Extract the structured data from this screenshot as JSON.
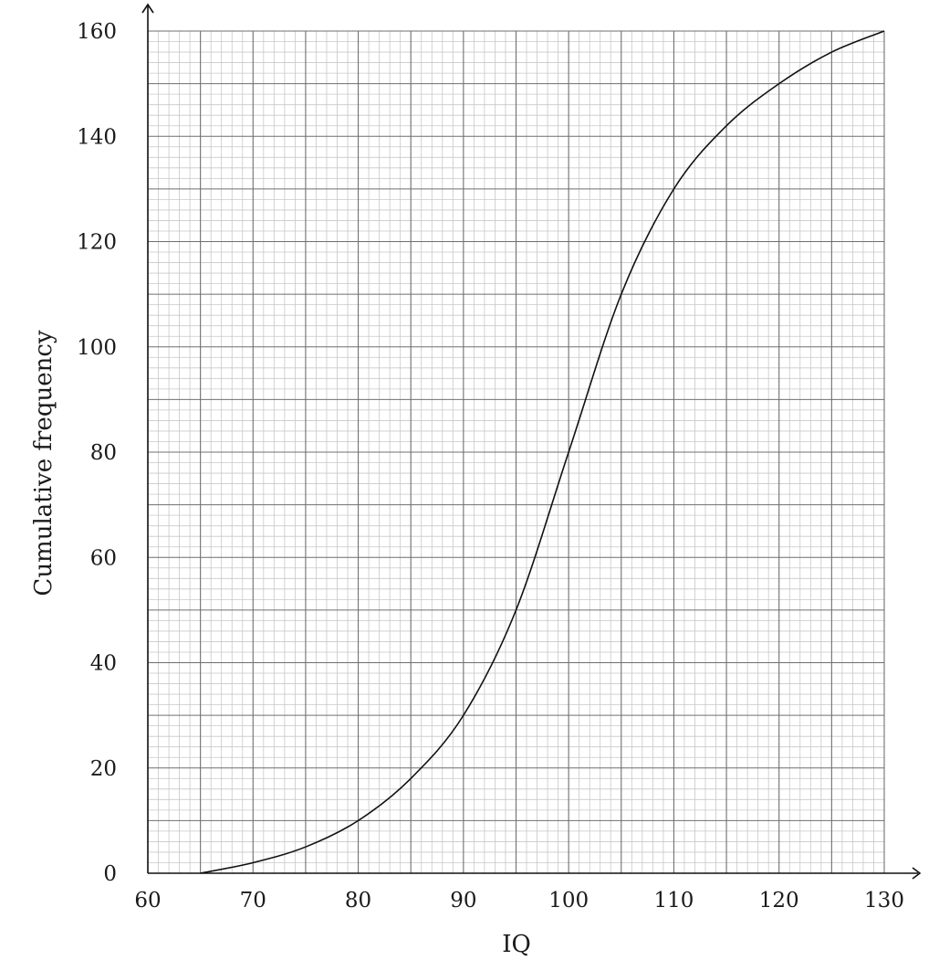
{
  "chart_data": {
    "type": "line",
    "title": "",
    "xlabel": "IQ",
    "ylabel": "Cumulative frequency",
    "xlim": [
      60,
      130
    ],
    "ylim": [
      0,
      160
    ],
    "x_ticks": [
      60,
      70,
      80,
      90,
      100,
      110,
      120,
      130
    ],
    "y_ticks": [
      0,
      20,
      40,
      60,
      80,
      100,
      120,
      140,
      160
    ],
    "x_tick_labels": [
      "60",
      "70",
      "80",
      "90",
      "100",
      "110",
      "120",
      "130"
    ],
    "y_tick_labels": [
      "0",
      "20",
      "40",
      "60",
      "80",
      "100",
      "120",
      "140",
      "160"
    ],
    "grid": "graph-paper (major every 5, minor every 1 on x; major every 10, minor every 2 on y)",
    "legend": "none",
    "series": [
      {
        "x": [
          65,
          70,
          75,
          80,
          85,
          90,
          95,
          100,
          105,
          110,
          115,
          120,
          125,
          130
        ],
        "y": [
          0,
          2,
          5,
          10,
          18,
          30,
          50,
          80,
          110,
          130,
          142,
          150,
          156,
          160
        ]
      }
    ]
  },
  "colors": {
    "minor_grid": "#c8c8c8",
    "major_grid": "#6f6f6f",
    "curve": "#111111",
    "axis": "#111111"
  }
}
